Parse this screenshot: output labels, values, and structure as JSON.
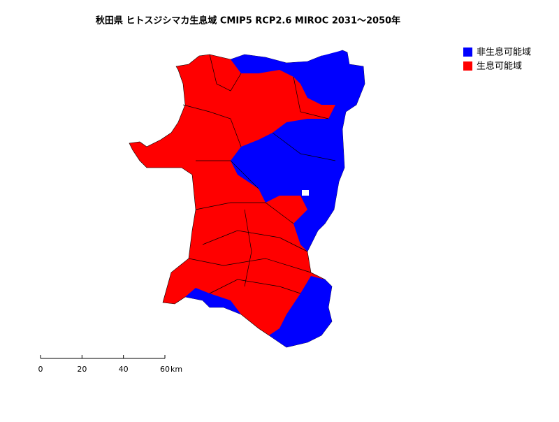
{
  "title": "秋田県 ヒトスジシマカ生息域 CMIP5 RCP2.6 MIROC 2031～2050年",
  "legend": {
    "items": [
      {
        "label": "非生息可能域",
        "color": "#0000ff"
      },
      {
        "label": "生息可能域",
        "color": "#ff0000"
      }
    ]
  },
  "scale_bar": {
    "ticks": [
      0,
      20,
      40,
      60
    ],
    "unit": "km"
  }
}
